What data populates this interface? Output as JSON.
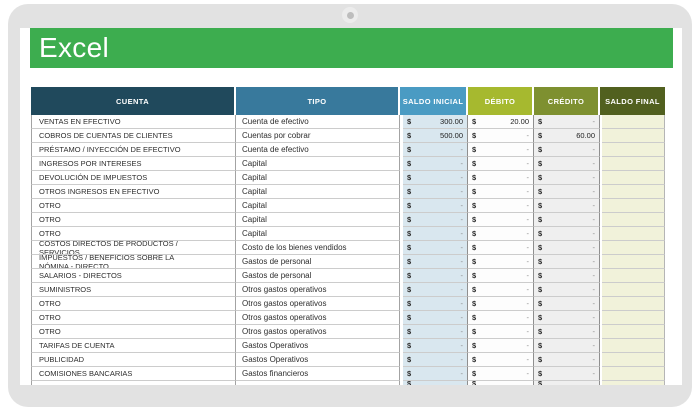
{
  "app": {
    "brand": "Excel"
  },
  "table": {
    "headers": [
      "CUENTA",
      "TIPO",
      "SALDO INICIAL",
      "DÉBITO",
      "CRÉDITO",
      "SALDO FINAL"
    ],
    "currency_symbol": "$",
    "rows": [
      {
        "cuenta": "VENTAS EN EFECTIVO",
        "tipo": "Cuenta de efectivo",
        "saldo_inicial": "300.00",
        "debito": "20.00",
        "credito": "-",
        "saldo_final": ""
      },
      {
        "cuenta": "COBROS DE CUENTAS DE CLIENTES",
        "tipo": "Cuentas por cobrar",
        "saldo_inicial": "500.00",
        "debito": "-",
        "credito": "60.00",
        "saldo_final": ""
      },
      {
        "cuenta": "PRÉSTAMO / INYECCIÓN DE EFECTIVO",
        "tipo": "Cuenta de efectivo",
        "saldo_inicial": "-",
        "debito": "-",
        "credito": "-",
        "saldo_final": ""
      },
      {
        "cuenta": "INGRESOS POR INTERESES",
        "tipo": "Capital",
        "saldo_inicial": "-",
        "debito": "-",
        "credito": "-",
        "saldo_final": ""
      },
      {
        "cuenta": "DEVOLUCIÓN DE IMPUESTOS",
        "tipo": "Capital",
        "saldo_inicial": "-",
        "debito": "-",
        "credito": "-",
        "saldo_final": ""
      },
      {
        "cuenta": "OTROS INGRESOS EN EFECTIVO",
        "tipo": "Capital",
        "saldo_inicial": "-",
        "debito": "-",
        "credito": "-",
        "saldo_final": ""
      },
      {
        "cuenta": "OTRO",
        "tipo": "Capital",
        "saldo_inicial": "-",
        "debito": "-",
        "credito": "-",
        "saldo_final": ""
      },
      {
        "cuenta": "OTRO",
        "tipo": "Capital",
        "saldo_inicial": "-",
        "debito": "-",
        "credito": "-",
        "saldo_final": ""
      },
      {
        "cuenta": "OTRO",
        "tipo": "Capital",
        "saldo_inicial": "-",
        "debito": "-",
        "credito": "-",
        "saldo_final": ""
      },
      {
        "cuenta": "COSTOS DIRECTOS DE PRODUCTOS / SERVICIOS",
        "tipo": "Costo de los bienes vendidos",
        "saldo_inicial": "-",
        "debito": "-",
        "credito": "-",
        "saldo_final": ""
      },
      {
        "cuenta": "IMPUESTOS / BENEFICIOS SOBRE LA NÓMINA - DIRECTO",
        "tipo": "Gastos de personal",
        "saldo_inicial": "-",
        "debito": "-",
        "credito": "-",
        "saldo_final": ""
      },
      {
        "cuenta": "SALARIOS - DIRECTOS",
        "tipo": "Gastos de personal",
        "saldo_inicial": "-",
        "debito": "-",
        "credito": "-",
        "saldo_final": ""
      },
      {
        "cuenta": "SUMINISTROS",
        "tipo": "Otros gastos operativos",
        "saldo_inicial": "-",
        "debito": "-",
        "credito": "-",
        "saldo_final": ""
      },
      {
        "cuenta": "OTRO",
        "tipo": "Otros gastos operativos",
        "saldo_inicial": "-",
        "debito": "-",
        "credito": "-",
        "saldo_final": ""
      },
      {
        "cuenta": "OTRO",
        "tipo": "Otros gastos operativos",
        "saldo_inicial": "-",
        "debito": "-",
        "credito": "-",
        "saldo_final": ""
      },
      {
        "cuenta": "OTRO",
        "tipo": "Otros gastos operativos",
        "saldo_inicial": "-",
        "debito": "-",
        "credito": "-",
        "saldo_final": ""
      },
      {
        "cuenta": "TARIFAS DE CUENTA",
        "tipo": "Gastos Operativos",
        "saldo_inicial": "-",
        "debito": "-",
        "credito": "-",
        "saldo_final": ""
      },
      {
        "cuenta": "PUBLICIDAD",
        "tipo": "Gastos Operativos",
        "saldo_inicial": "-",
        "debito": "-",
        "credito": "-",
        "saldo_final": ""
      },
      {
        "cuenta": "COMISIONES BANCARIAS",
        "tipo": "Gastos financieros",
        "saldo_inicial": "-",
        "debito": "-",
        "credito": "-",
        "saldo_final": ""
      },
      {
        "cuenta": "",
        "tipo": "",
        "saldo_inicial": "",
        "debito": "",
        "credito": "",
        "saldo_final": ""
      }
    ]
  },
  "colors": {
    "banner_green": "#3dad4f",
    "frame_gray": "#e2e2e2",
    "header_cuenta": "#20495c",
    "header_tipo": "#38799c",
    "header_saldo_inicial": "#4a9bc3",
    "header_debito": "#a6b92f",
    "header_credito": "#7e9030",
    "header_saldo_final": "#51601f",
    "cell_saldo_inicial_bg": "#d9e7ef",
    "cell_credito_bg": "#efefef",
    "cell_saldo_final_bg": "#f1f2da"
  }
}
